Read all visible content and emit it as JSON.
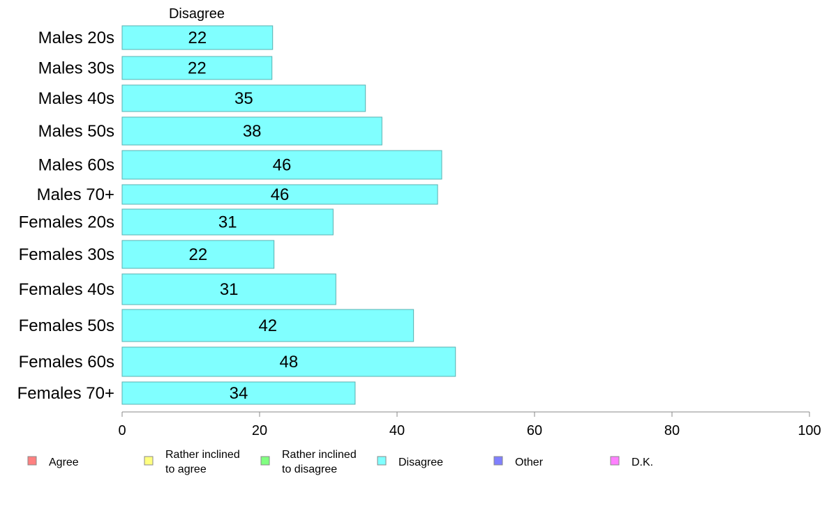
{
  "chart_data": {
    "type": "bar",
    "orientation": "horizontal",
    "panel_label": "Disagree",
    "categories": [
      "Males 20s",
      "Males 30s",
      "Males 40s",
      "Males 50s",
      "Males 60s",
      "Males 70+",
      "Females 20s",
      "Females 30s",
      "Females 40s",
      "Females 50s",
      "Females 60s",
      "Females 70+"
    ],
    "values": [
      21.9,
      21.8,
      35.4,
      37.8,
      46.5,
      45.9,
      30.7,
      22.1,
      31.1,
      42.4,
      48.5,
      33.9
    ],
    "data_labels": [
      "22",
      "22",
      "35",
      "38",
      "46",
      "46",
      "31",
      "22",
      "31",
      "42",
      "48",
      "34"
    ],
    "xlim": [
      0,
      100
    ],
    "xticks": [
      0,
      20,
      40,
      60,
      80,
      100
    ],
    "bar_color": "#80ffff",
    "bar_edge_color": "#5ab0b0",
    "grid": false,
    "legend": {
      "placement": "bottom",
      "items": [
        {
          "lines": [
            "Agree"
          ],
          "color": "#ff8080"
        },
        {
          "lines": [
            "Rather inclined",
            "to agree"
          ],
          "color": "#ffff80"
        },
        {
          "lines": [
            "Rather inclined",
            "to disagree"
          ],
          "color": "#80ff80"
        },
        {
          "lines": [
            "Disagree"
          ],
          "color": "#80ffff"
        },
        {
          "lines": [
            "Other"
          ],
          "color": "#8080ff"
        },
        {
          "lines": [
            "D.K."
          ],
          "color": "#ff80ff"
        }
      ]
    }
  }
}
